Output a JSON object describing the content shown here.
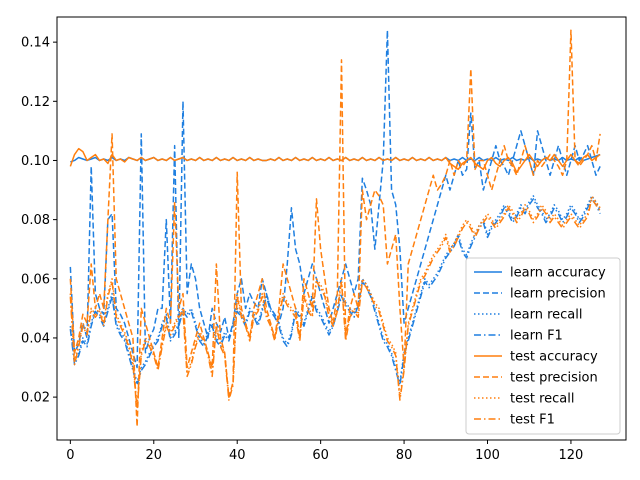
{
  "chart_data": {
    "type": "line",
    "title": "",
    "xlabel": "",
    "ylabel": "",
    "xlim": [
      -3.2,
      133.2
    ],
    "ylim": [
      0.0055,
      0.1485
    ],
    "xticks": [
      0,
      20,
      40,
      60,
      80,
      100,
      120
    ],
    "yticks": [
      0.02,
      0.04,
      0.06,
      0.08,
      0.1,
      0.12,
      0.14
    ],
    "ytick_labels": [
      "0.02",
      "0.04",
      "0.06",
      "0.08",
      "0.10",
      "0.12",
      "0.14"
    ],
    "xtick_labels": [
      "0",
      "20",
      "40",
      "60",
      "80",
      "100",
      "120"
    ],
    "grid": false,
    "legend": "lower-right",
    "series": [
      {
        "name": "learn accuracy",
        "color": "#1f7fe0",
        "dash": "solid",
        "values": [
          0.0995,
          0.1,
          0.101,
          0.1005,
          0.1,
          0.1005,
          0.101,
          0.1,
          0.1005,
          0.1,
          0.101,
          0.1,
          0.1005,
          0.1,
          0.101,
          0.1005,
          0.1,
          0.101,
          0.1,
          0.1005,
          0.101,
          0.1,
          0.1005,
          0.1,
          0.101,
          0.1,
          0.1005,
          0.101,
          0.1,
          0.1005,
          0.1,
          0.101,
          0.1,
          0.1005,
          0.1,
          0.101,
          0.1,
          0.1005,
          0.1,
          0.101,
          0.1,
          0.1005,
          0.1,
          0.101,
          0.1,
          0.1005,
          0.1,
          0.1,
          0.1005,
          0.1,
          0.101,
          0.1,
          0.1005,
          0.1,
          0.101,
          0.1,
          0.1005,
          0.1,
          0.101,
          0.1,
          0.1005,
          0.1,
          0.101,
          0.1,
          0.1005,
          0.1,
          0.101,
          0.1,
          0.1005,
          0.1,
          0.101,
          0.1,
          0.1005,
          0.1,
          0.101,
          0.1,
          0.1005,
          0.1,
          0.101,
          0.1,
          0.1005,
          0.1,
          0.101,
          0.1,
          0.1005,
          0.1,
          0.101,
          0.1,
          0.1005,
          0.1,
          0.101,
          0.1,
          0.1005,
          0.1,
          0.101,
          0.1,
          0.1005,
          0.1,
          0.101,
          0.1,
          0.1005,
          0.1,
          0.101,
          0.1,
          0.1005,
          0.1,
          0.101,
          0.1,
          0.1005,
          0.1,
          0.101,
          0.1,
          0.1005,
          0.1,
          0.101,
          0.1,
          0.1005,
          0.1,
          0.101,
          0.1,
          0.1005,
          0.1,
          0.101,
          0.1,
          0.1005,
          0.101,
          0.1015,
          0.102
        ]
      },
      {
        "name": "learn precision",
        "color": "#1f7fe0",
        "dash": "dashed",
        "values": [
          0.064,
          0.035,
          0.038,
          0.045,
          0.04,
          0.098,
          0.055,
          0.05,
          0.048,
          0.08,
          0.082,
          0.05,
          0.048,
          0.045,
          0.04,
          0.035,
          0.03,
          0.109,
          0.035,
          0.04,
          0.043,
          0.05,
          0.05,
          0.08,
          0.045,
          0.105,
          0.04,
          0.12,
          0.055,
          0.065,
          0.06,
          0.05,
          0.045,
          0.04,
          0.05,
          0.045,
          0.042,
          0.047,
          0.04,
          0.045,
          0.055,
          0.06,
          0.05,
          0.055,
          0.052,
          0.05,
          0.06,
          0.055,
          0.05,
          0.048,
          0.045,
          0.05,
          0.065,
          0.084,
          0.07,
          0.065,
          0.055,
          0.06,
          0.065,
          0.06,
          0.055,
          0.05,
          0.045,
          0.05,
          0.055,
          0.06,
          0.065,
          0.06,
          0.055,
          0.06,
          0.094,
          0.09,
          0.085,
          0.07,
          0.085,
          0.1,
          0.144,
          0.09,
          0.085,
          0.07,
          0.045,
          0.05,
          0.055,
          0.06,
          0.065,
          0.07,
          0.075,
          0.08,
          0.085,
          0.09,
          0.095,
          0.09,
          0.095,
          0.1,
          0.095,
          0.097,
          0.116,
          0.097,
          0.1,
          0.09,
          0.095,
          0.1,
          0.105,
          0.1,
          0.098,
          0.095,
          0.1,
          0.105,
          0.11,
          0.105,
          0.1,
          0.095,
          0.11,
          0.105,
          0.1,
          0.095,
          0.1,
          0.105,
          0.1,
          0.095,
          0.1,
          0.105,
          0.1,
          0.102,
          0.105,
          0.1,
          0.095,
          0.098
        ]
      },
      {
        "name": "learn recall",
        "color": "#1f7fe0",
        "dash": "dotted",
        "values": [
          0.044,
          0.032,
          0.035,
          0.04,
          0.038,
          0.045,
          0.05,
          0.048,
          0.045,
          0.05,
          0.055,
          0.045,
          0.042,
          0.04,
          0.035,
          0.03,
          0.025,
          0.03,
          0.032,
          0.035,
          0.038,
          0.04,
          0.045,
          0.048,
          0.04,
          0.042,
          0.045,
          0.05,
          0.048,
          0.05,
          0.045,
          0.04,
          0.038,
          0.042,
          0.045,
          0.04,
          0.038,
          0.042,
          0.04,
          0.045,
          0.05,
          0.048,
          0.045,
          0.05,
          0.048,
          0.045,
          0.05,
          0.055,
          0.05,
          0.048,
          0.045,
          0.04,
          0.038,
          0.042,
          0.05,
          0.048,
          0.045,
          0.05,
          0.055,
          0.05,
          0.048,
          0.045,
          0.042,
          0.045,
          0.05,
          0.055,
          0.052,
          0.05,
          0.048,
          0.052,
          0.06,
          0.058,
          0.055,
          0.05,
          0.045,
          0.04,
          0.038,
          0.035,
          0.03,
          0.025,
          0.035,
          0.04,
          0.045,
          0.05,
          0.055,
          0.06,
          0.058,
          0.06,
          0.062,
          0.065,
          0.068,
          0.07,
          0.072,
          0.075,
          0.07,
          0.068,
          0.072,
          0.075,
          0.078,
          0.08,
          0.075,
          0.078,
          0.08,
          0.082,
          0.085,
          0.083,
          0.08,
          0.082,
          0.085,
          0.083,
          0.086,
          0.088,
          0.085,
          0.083,
          0.08,
          0.082,
          0.085,
          0.083,
          0.08,
          0.082,
          0.085,
          0.083,
          0.08,
          0.082,
          0.085,
          0.088,
          0.086,
          0.083
        ]
      },
      {
        "name": "learn F1",
        "color": "#1f7fe0",
        "dash": "dashdot",
        "values": [
          0.043,
          0.031,
          0.034,
          0.039,
          0.037,
          0.044,
          0.049,
          0.047,
          0.044,
          0.049,
          0.054,
          0.044,
          0.041,
          0.039,
          0.034,
          0.029,
          0.024,
          0.029,
          0.031,
          0.034,
          0.037,
          0.039,
          0.044,
          0.047,
          0.039,
          0.041,
          0.044,
          0.049,
          0.047,
          0.049,
          0.044,
          0.039,
          0.037,
          0.041,
          0.044,
          0.039,
          0.037,
          0.041,
          0.039,
          0.044,
          0.049,
          0.047,
          0.044,
          0.049,
          0.047,
          0.044,
          0.049,
          0.054,
          0.049,
          0.047,
          0.044,
          0.039,
          0.037,
          0.041,
          0.049,
          0.047,
          0.044,
          0.049,
          0.054,
          0.049,
          0.047,
          0.044,
          0.041,
          0.044,
          0.049,
          0.054,
          0.051,
          0.049,
          0.047,
          0.051,
          0.059,
          0.057,
          0.054,
          0.049,
          0.044,
          0.039,
          0.037,
          0.034,
          0.029,
          0.024,
          0.034,
          0.039,
          0.044,
          0.049,
          0.054,
          0.059,
          0.057,
          0.059,
          0.061,
          0.064,
          0.067,
          0.069,
          0.071,
          0.074,
          0.069,
          0.067,
          0.071,
          0.074,
          0.077,
          0.079,
          0.074,
          0.077,
          0.079,
          0.081,
          0.084,
          0.082,
          0.079,
          0.081,
          0.084,
          0.082,
          0.085,
          0.087,
          0.084,
          0.082,
          0.079,
          0.081,
          0.084,
          0.082,
          0.079,
          0.081,
          0.084,
          0.082,
          0.079,
          0.081,
          0.084,
          0.087,
          0.085,
          0.082
        ]
      },
      {
        "name": "test accuracy",
        "color": "#ff7f0e",
        "dash": "solid",
        "values": [
          0.098,
          0.102,
          0.104,
          0.103,
          0.1,
          0.101,
          0.102,
          0.1,
          0.1005,
          0.099,
          0.102,
          0.1,
          0.1005,
          0.0995,
          0.101,
          0.1005,
          0.1,
          0.101,
          0.1,
          0.1005,
          0.101,
          0.1,
          0.1005,
          0.1,
          0.101,
          0.1,
          0.1005,
          0.101,
          0.1,
          0.1005,
          0.1,
          0.101,
          0.1,
          0.1005,
          0.1,
          0.101,
          0.1,
          0.1005,
          0.1,
          0.101,
          0.1,
          0.1005,
          0.1,
          0.101,
          0.1,
          0.1005,
          0.1,
          0.1,
          0.1005,
          0.1,
          0.101,
          0.1,
          0.1005,
          0.1,
          0.101,
          0.1,
          0.1005,
          0.1,
          0.101,
          0.1,
          0.1005,
          0.1,
          0.101,
          0.1,
          0.1005,
          0.1,
          0.101,
          0.1,
          0.1005,
          0.1,
          0.101,
          0.1,
          0.1005,
          0.1,
          0.101,
          0.1,
          0.1005,
          0.1,
          0.101,
          0.1,
          0.1005,
          0.1,
          0.101,
          0.1,
          0.1005,
          0.1,
          0.101,
          0.1,
          0.1005,
          0.1,
          0.101,
          0.099,
          0.098,
          0.097,
          0.099,
          0.1,
          0.101,
          0.099,
          0.098,
          0.097,
          0.1,
          0.101,
          0.099,
          0.098,
          0.1,
          0.101,
          0.099,
          0.096,
          0.098,
          0.1,
          0.102,
          0.1,
          0.098,
          0.1,
          0.101,
          0.1,
          0.102,
          0.1,
          0.098,
          0.1,
          0.102,
          0.1,
          0.099,
          0.101,
          0.102,
          0.1,
          0.101,
          0.102
        ]
      },
      {
        "name": "test precision",
        "color": "#ff7f0e",
        "dash": "dashed",
        "values": [
          0.06,
          0.035,
          0.04,
          0.048,
          0.045,
          0.065,
          0.05,
          0.055,
          0.05,
          0.08,
          0.109,
          0.06,
          0.055,
          0.05,
          0.045,
          0.04,
          0.01,
          0.05,
          0.045,
          0.04,
          0.035,
          0.03,
          0.04,
          0.05,
          0.045,
          0.086,
          0.05,
          0.055,
          0.03,
          0.035,
          0.04,
          0.045,
          0.04,
          0.035,
          0.03,
          0.065,
          0.04,
          0.035,
          0.02,
          0.025,
          0.096,
          0.05,
          0.045,
          0.04,
          0.05,
          0.055,
          0.06,
          0.05,
          0.045,
          0.04,
          0.05,
          0.065,
          0.06,
          0.055,
          0.05,
          0.04,
          0.06,
          0.055,
          0.05,
          0.087,
          0.07,
          0.06,
          0.05,
          0.045,
          0.055,
          0.134,
          0.04,
          0.05,
          0.055,
          0.05,
          0.09,
          0.08,
          0.085,
          0.09,
          0.088,
          0.085,
          0.065,
          0.07,
          0.075,
          0.05,
          0.03,
          0.065,
          0.07,
          0.075,
          0.08,
          0.085,
          0.09,
          0.095,
          0.09,
          0.092,
          0.095,
          0.1,
          0.095,
          0.1,
          0.098,
          0.1,
          0.131,
          0.097,
          0.1,
          0.1,
          0.095,
          0.09,
          0.095,
          0.1,
          0.105,
          0.1,
          0.098,
          0.095,
          0.1,
          0.105,
          0.1,
          0.095,
          0.1,
          0.098,
          0.1,
          0.102,
          0.1,
          0.098,
          0.095,
          0.1,
          0.144,
          0.1,
          0.098,
          0.1,
          0.102,
          0.105,
          0.1,
          0.109
        ]
      },
      {
        "name": "test recall",
        "color": "#ff7f0e",
        "dash": "dotted",
        "values": [
          0.055,
          0.032,
          0.038,
          0.045,
          0.042,
          0.05,
          0.048,
          0.05,
          0.045,
          0.055,
          0.06,
          0.048,
          0.045,
          0.042,
          0.038,
          0.032,
          0.017,
          0.035,
          0.04,
          0.038,
          0.035,
          0.03,
          0.038,
          0.045,
          0.042,
          0.045,
          0.048,
          0.05,
          0.028,
          0.032,
          0.038,
          0.042,
          0.04,
          0.035,
          0.028,
          0.045,
          0.038,
          0.035,
          0.02,
          0.025,
          0.055,
          0.048,
          0.045,
          0.04,
          0.048,
          0.05,
          0.055,
          0.048,
          0.045,
          0.04,
          0.048,
          0.055,
          0.052,
          0.05,
          0.048,
          0.04,
          0.055,
          0.05,
          0.048,
          0.06,
          0.058,
          0.055,
          0.048,
          0.045,
          0.05,
          0.06,
          0.04,
          0.048,
          0.05,
          0.048,
          0.06,
          0.058,
          0.055,
          0.052,
          0.05,
          0.045,
          0.04,
          0.038,
          0.035,
          0.02,
          0.03,
          0.045,
          0.05,
          0.055,
          0.06,
          0.062,
          0.065,
          0.068,
          0.07,
          0.072,
          0.075,
          0.07,
          0.072,
          0.075,
          0.078,
          0.08,
          0.078,
          0.075,
          0.078,
          0.08,
          0.082,
          0.08,
          0.078,
          0.08,
          0.082,
          0.085,
          0.083,
          0.08,
          0.082,
          0.085,
          0.083,
          0.08,
          0.082,
          0.085,
          0.083,
          0.08,
          0.082,
          0.08,
          0.078,
          0.08,
          0.082,
          0.08,
          0.078,
          0.08,
          0.082,
          0.088,
          0.086,
          0.084
        ]
      },
      {
        "name": "test F1",
        "color": "#ff7f0e",
        "dash": "dashdot",
        "values": [
          0.054,
          0.031,
          0.037,
          0.044,
          0.041,
          0.049,
          0.047,
          0.049,
          0.044,
          0.054,
          0.059,
          0.047,
          0.044,
          0.041,
          0.037,
          0.031,
          0.016,
          0.034,
          0.039,
          0.037,
          0.034,
          0.029,
          0.037,
          0.044,
          0.041,
          0.044,
          0.047,
          0.049,
          0.027,
          0.031,
          0.037,
          0.041,
          0.039,
          0.034,
          0.027,
          0.044,
          0.037,
          0.034,
          0.019,
          0.024,
          0.054,
          0.047,
          0.044,
          0.039,
          0.047,
          0.049,
          0.054,
          0.047,
          0.044,
          0.039,
          0.047,
          0.054,
          0.051,
          0.049,
          0.047,
          0.039,
          0.054,
          0.049,
          0.047,
          0.059,
          0.057,
          0.054,
          0.047,
          0.044,
          0.049,
          0.059,
          0.039,
          0.047,
          0.049,
          0.047,
          0.059,
          0.057,
          0.054,
          0.051,
          0.049,
          0.044,
          0.039,
          0.037,
          0.034,
          0.019,
          0.029,
          0.044,
          0.049,
          0.054,
          0.059,
          0.061,
          0.064,
          0.067,
          0.069,
          0.071,
          0.074,
          0.069,
          0.071,
          0.074,
          0.077,
          0.079,
          0.077,
          0.074,
          0.077,
          0.079,
          0.081,
          0.079,
          0.077,
          0.079,
          0.081,
          0.084,
          0.082,
          0.079,
          0.081,
          0.084,
          0.082,
          0.079,
          0.081,
          0.084,
          0.082,
          0.079,
          0.081,
          0.079,
          0.077,
          0.079,
          0.081,
          0.079,
          0.077,
          0.079,
          0.081,
          0.087,
          0.085,
          0.083
        ]
      }
    ]
  }
}
